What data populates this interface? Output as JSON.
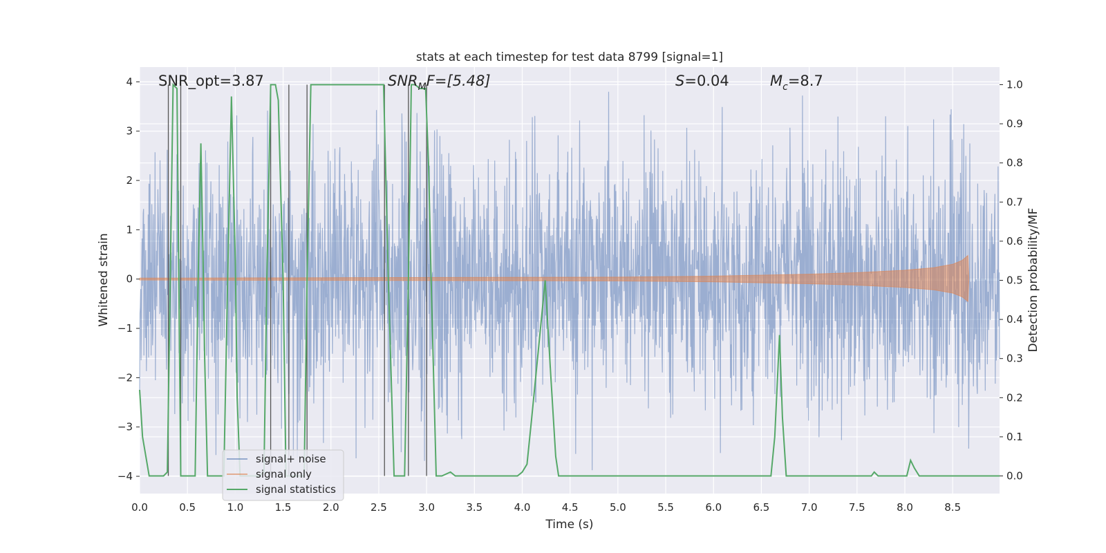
{
  "chart_data": {
    "type": "line",
    "title": "stats at each timestep for test data 8799 [signal=1]",
    "xlabel": "Time (s)",
    "ylabel_left": "Whitened strain",
    "ylabel_right": "Detection probability/MF",
    "xlim": [
      0.0,
      8.99
    ],
    "ylim_left": [
      -4.35,
      4.3
    ],
    "ylim_right": [
      -0.045,
      1.045
    ],
    "x_ticks": [
      "0.0",
      "0.5",
      "1.0",
      "1.5",
      "2.0",
      "2.5",
      "3.0",
      "3.5",
      "4.0",
      "4.5",
      "5.0",
      "5.5",
      "6.0",
      "6.5",
      "7.0",
      "7.5",
      "8.0",
      "8.5"
    ],
    "y_ticks_left": [
      "−4",
      "−3",
      "−2",
      "−1",
      "0",
      "1",
      "2",
      "3",
      "4"
    ],
    "y_ticks_right": [
      "0.0",
      "0.1",
      "0.2",
      "0.3",
      "0.4",
      "0.5",
      "0.6",
      "0.7",
      "0.8",
      "0.9",
      "1.0"
    ],
    "grid": true,
    "legend_position": "lower-left",
    "annotations": {
      "snr_opt": "SNR_opt=3.87",
      "snr_mf_base": "SNR",
      "snr_mf_sub": "M",
      "snr_mf_rest": "F=[5.48]",
      "s_sym": "S",
      "s_val": "=0.04",
      "mc_base": "M",
      "mc_sub": "c",
      "mc_val": "=8.7"
    },
    "vertical_markers_x": [
      0.3,
      0.43,
      1.37,
      1.56,
      1.75,
      2.56,
      2.81,
      3.0
    ],
    "series": [
      {
        "name": "signal+ noise",
        "color": "#4c72b0",
        "axis": "left",
        "noise_band_sigma": 1.0,
        "peak_abs": 3.9
      },
      {
        "name": "signal only",
        "color": "#dd8452",
        "axis": "left",
        "chirp_envelope": {
          "x": [
            0.0,
            5.0,
            6.0,
            7.0,
            7.5,
            8.0,
            8.3,
            8.5,
            8.6,
            8.66,
            8.67
          ],
          "amplitude": [
            0.02,
            0.04,
            0.06,
            0.1,
            0.13,
            0.18,
            0.23,
            0.3,
            0.38,
            0.48,
            0.0
          ]
        }
      },
      {
        "name": "signal statistics",
        "color": "#55a868",
        "axis": "right",
        "x": [
          0.0,
          0.03,
          0.1,
          0.15,
          0.2,
          0.25,
          0.29,
          0.32,
          0.35,
          0.39,
          0.43,
          0.45,
          0.49,
          0.52,
          0.55,
          0.58,
          0.61,
          0.64,
          0.66,
          0.68,
          0.71,
          0.74,
          0.77,
          0.8,
          0.84,
          0.88,
          0.92,
          0.96,
          1.0,
          1.02,
          1.05,
          1.08,
          1.12,
          1.16,
          1.2,
          1.25,
          1.3,
          1.33,
          1.37,
          1.4,
          1.42,
          1.45,
          1.5,
          1.53,
          1.56,
          1.58,
          1.61,
          1.65,
          1.69,
          1.72,
          1.75,
          1.79,
          1.83,
          1.87,
          1.92,
          2.0,
          2.5,
          2.55,
          2.6,
          2.66,
          2.71,
          2.77,
          2.81,
          2.84,
          2.88,
          2.93,
          2.99,
          3.02,
          3.05,
          3.1,
          3.16,
          3.25,
          3.3,
          3.35,
          3.45,
          3.55,
          3.65,
          3.75,
          3.85,
          3.95,
          4.0,
          4.05,
          4.1,
          4.18,
          4.24,
          4.3,
          4.35,
          4.38,
          4.5,
          5.0,
          6.0,
          6.5,
          6.6,
          6.64,
          6.69,
          6.72,
          6.76,
          6.8,
          7.0,
          7.3,
          7.4,
          7.6,
          7.65,
          7.68,
          7.72,
          8.0,
          8.02,
          8.06,
          8.1,
          8.15,
          8.2,
          8.4,
          8.5,
          8.99
        ],
        "values": [
          0.22,
          0.1,
          0.0,
          0.0,
          0.0,
          0.0,
          0.01,
          0.5,
          1.0,
          0.99,
          0.0,
          0.0,
          0.0,
          0.0,
          0.0,
          0.0,
          0.48,
          0.85,
          0.6,
          0.3,
          0.0,
          0.0,
          0.0,
          0.0,
          0.0,
          0.0,
          0.5,
          0.97,
          0.55,
          0.2,
          0.0,
          0.0,
          0.0,
          0.0,
          0.0,
          0.0,
          0.01,
          0.5,
          1.0,
          1.0,
          1.0,
          0.96,
          0.5,
          0.0,
          0.0,
          0.0,
          0.0,
          0.0,
          0.0,
          0.0,
          0.5,
          1.0,
          1.0,
          1.0,
          1.0,
          1.0,
          1.0,
          1.0,
          0.5,
          0.0,
          0.0,
          0.0,
          0.5,
          1.0,
          1.0,
          0.99,
          0.99,
          0.8,
          0.48,
          0.0,
          0.0,
          0.01,
          0.0,
          0.0,
          0.0,
          0.0,
          0.0,
          0.0,
          0.0,
          0.0,
          0.01,
          0.03,
          0.15,
          0.35,
          0.5,
          0.25,
          0.05,
          0.0,
          0.0,
          0.0,
          0.0,
          0.0,
          0.0,
          0.1,
          0.36,
          0.15,
          0.0,
          0.0,
          0.0,
          0.0,
          0.0,
          0.0,
          0.0,
          0.01,
          0.0,
          0.0,
          0.0,
          0.04,
          0.02,
          0.0,
          0.0,
          0.0,
          0.0,
          0.0
        ]
      }
    ]
  }
}
